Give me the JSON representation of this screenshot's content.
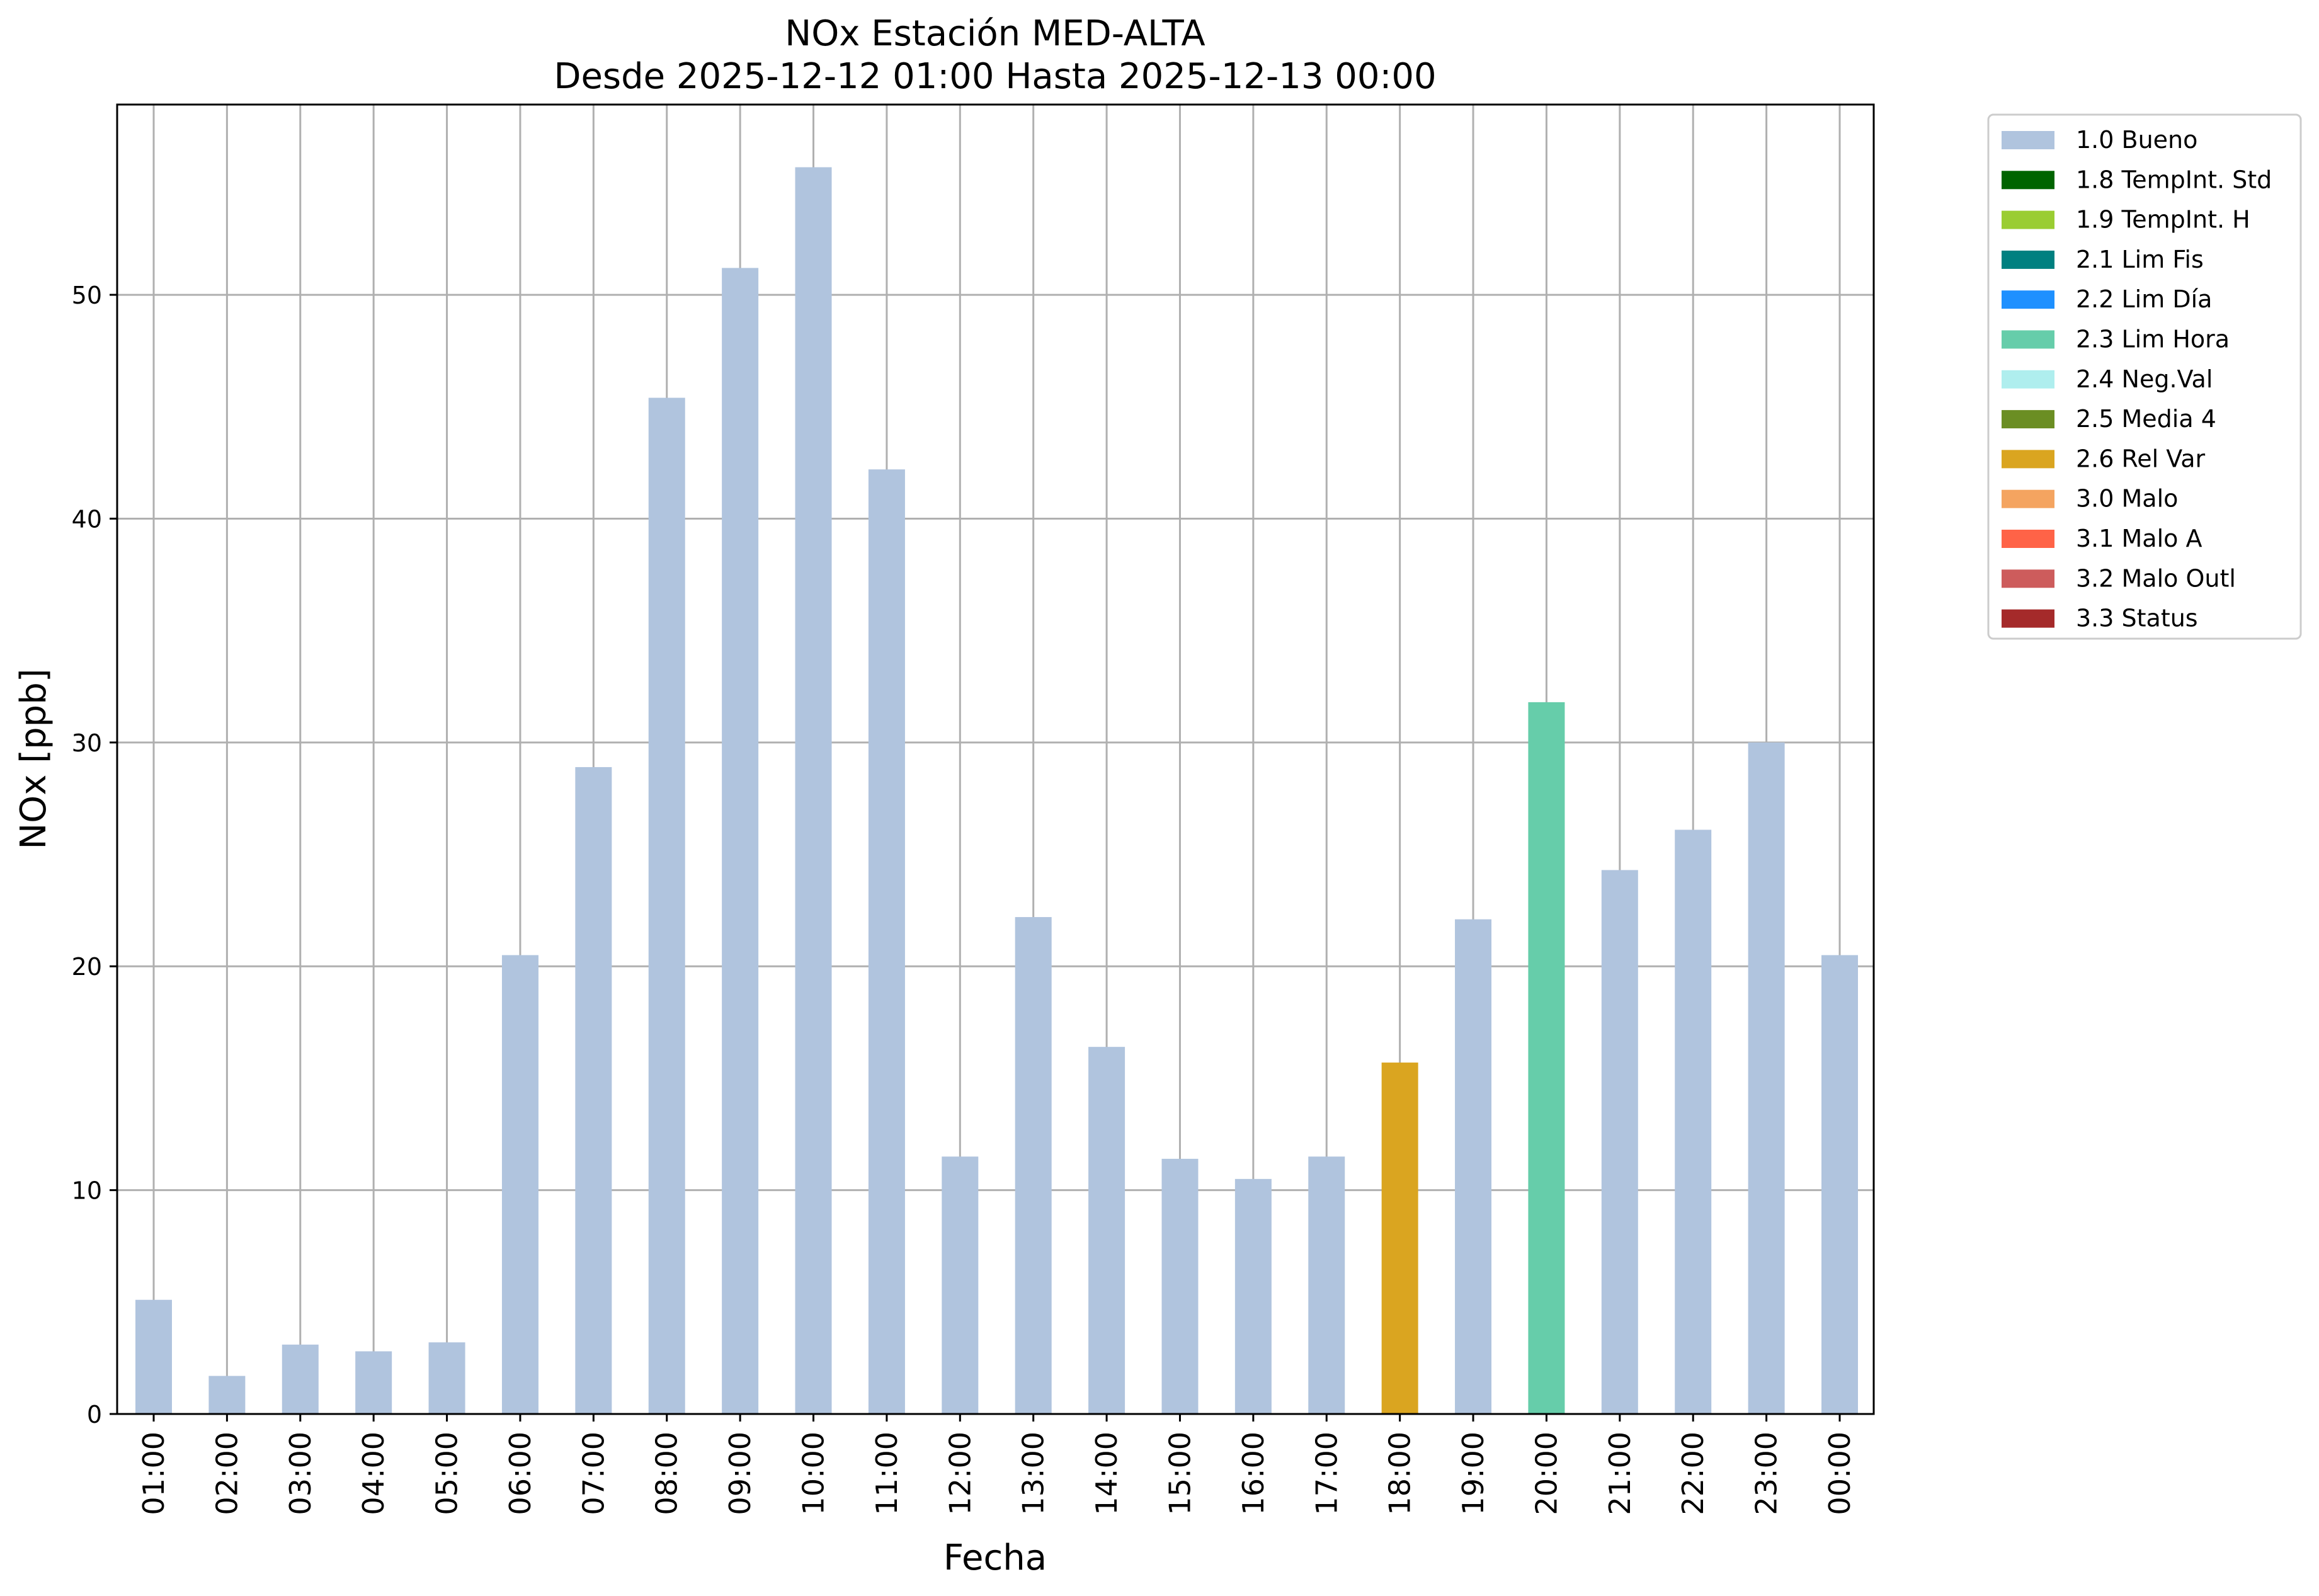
{
  "chart_data": {
    "type": "bar",
    "title": "NOx Estación MED-ALTA",
    "subtitle": "Desde 2025-12-12 01:00 Hasta 2025-12-13 00:00",
    "xlabel": "Fecha",
    "ylabel": "NOx [ppb]",
    "ylim": [
      0,
      58.5
    ],
    "yticks": [
      "0",
      "10",
      "20",
      "30",
      "40",
      "50"
    ],
    "grid": true,
    "legend_position": "outside-top-right",
    "categories": [
      "01:00",
      "02:00",
      "03:00",
      "04:00",
      "05:00",
      "06:00",
      "07:00",
      "08:00",
      "09:00",
      "10:00",
      "11:00",
      "12:00",
      "13:00",
      "14:00",
      "15:00",
      "16:00",
      "17:00",
      "18:00",
      "19:00",
      "20:00",
      "21:00",
      "22:00",
      "23:00",
      "00:00"
    ],
    "values": [
      5.1,
      1.7,
      3.1,
      2.8,
      3.2,
      20.5,
      28.9,
      45.4,
      51.2,
      55.7,
      42.2,
      11.5,
      22.2,
      16.4,
      11.4,
      10.5,
      11.5,
      15.7,
      22.1,
      31.8,
      24.3,
      26.1,
      30.0,
      20.5
    ],
    "flags": [
      "1.0 Bueno",
      "1.0 Bueno",
      "1.0 Bueno",
      "1.0 Bueno",
      "1.0 Bueno",
      "1.0 Bueno",
      "1.0 Bueno",
      "1.0 Bueno",
      "1.0 Bueno",
      "1.0 Bueno",
      "1.0 Bueno",
      "1.0 Bueno",
      "1.0 Bueno",
      "1.0 Bueno",
      "1.0 Bueno",
      "1.0 Bueno",
      "1.0 Bueno",
      "2.6 Rel Var",
      "1.0 Bueno",
      "2.3 Lim Hora",
      "1.0 Bueno",
      "1.0 Bueno",
      "1.0 Bueno",
      "1.0 Bueno"
    ],
    "legend": [
      {
        "label": "1.0 Bueno",
        "color": "#b0c4de"
      },
      {
        "label": "1.8 TempInt. Std",
        "color": "#006400"
      },
      {
        "label": "1.9 TempInt. H",
        "color": "#9acd32"
      },
      {
        "label": "2.1 Lim Fis",
        "color": "#008080"
      },
      {
        "label": "2.2 Lim Día",
        "color": "#1e90ff"
      },
      {
        "label": "2.3 Lim Hora",
        "color": "#66cdaa"
      },
      {
        "label": "2.4 Neg.Val",
        "color": "#afeeee"
      },
      {
        "label": "2.5 Media 4",
        "color": "#6b8e23"
      },
      {
        "label": "2.6 Rel Var",
        "color": "#daa520"
      },
      {
        "label": "3.0 Malo",
        "color": "#f4a460"
      },
      {
        "label": "3.1 Malo A",
        "color": "#ff6347"
      },
      {
        "label": "3.2 Malo Outl",
        "color": "#cd5c5c"
      },
      {
        "label": "3.3 Status",
        "color": "#a52a2a"
      }
    ]
  }
}
